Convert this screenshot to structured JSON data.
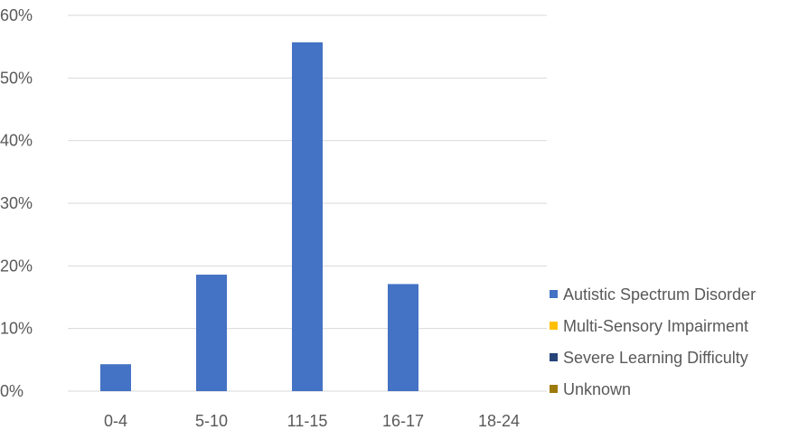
{
  "chart_data": {
    "type": "bar",
    "categories": [
      "0-4",
      "5-10",
      "11-15",
      "16-17",
      "18-24"
    ],
    "series": [
      {
        "name": "Autistic Spectrum Disorder",
        "color": "#4472C4",
        "values": [
          4.3,
          18.6,
          55.7,
          17.1,
          0
        ]
      },
      {
        "name": "Multi-Sensory Impairment",
        "color": "#FFC000",
        "values": [
          0,
          0,
          0,
          0,
          0
        ]
      },
      {
        "name": "Severe Learning Difficulty",
        "color": "#264478",
        "values": [
          0,
          0,
          0,
          0,
          0
        ]
      },
      {
        "name": "Unknown",
        "color": "#9E7A0A",
        "values": [
          0,
          0,
          0,
          0,
          0
        ]
      }
    ],
    "y_ticks": [
      "0%",
      "10%",
      "20%",
      "30%",
      "40%",
      "50%",
      "60%"
    ],
    "ylim": [
      0,
      60
    ],
    "y_unit": "percent",
    "grid": true,
    "legend_position": "right-bottom",
    "title": "",
    "xlabel": "",
    "ylabel": ""
  }
}
